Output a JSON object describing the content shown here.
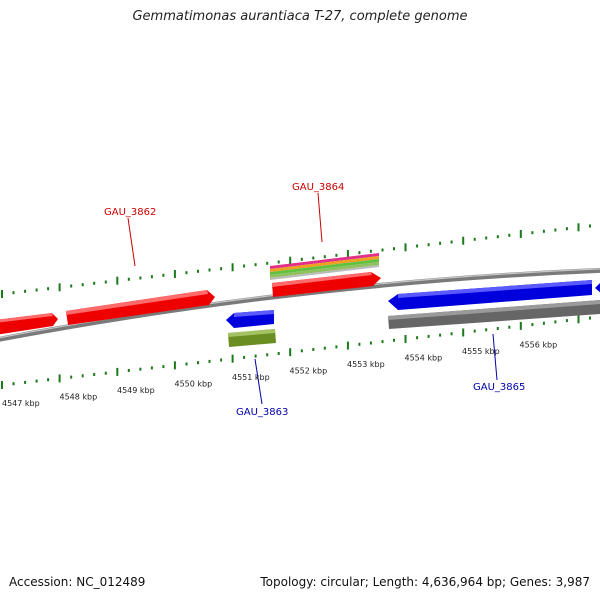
{
  "title": "Gemmatimonas aurantiaca T-27, complete genome",
  "footer": {
    "accession": "Accession: NC_012489",
    "topology": "Topology: circular; Length: 4,636,964 bp; Genes: 3,987"
  },
  "colors": {
    "forward_gene": "#ee0000",
    "reverse_gene": "#0000dd",
    "olive_gene": "#6b8e23",
    "gray_feature": "#666666",
    "tick": "#1a7a1a",
    "backbone": "#888888",
    "label_forward": "#cc0000",
    "label_reverse": "#0000aa"
  },
  "scale": {
    "ticks": [
      {
        "label": "4547 kbp",
        "kbp": 4547
      },
      {
        "label": "4548 kbp",
        "kbp": 4548
      },
      {
        "label": "4549 kbp",
        "kbp": 4549
      },
      {
        "label": "4550 kbp",
        "kbp": 4550
      },
      {
        "label": "4551 kbp",
        "kbp": 4551
      },
      {
        "label": "4552 kbp",
        "kbp": 4552
      },
      {
        "label": "4553 kbp",
        "kbp": 4553
      },
      {
        "label": "4554 kbp",
        "kbp": 4554
      },
      {
        "label": "4555 kbp",
        "kbp": 4555
      },
      {
        "label": "4556 kbp",
        "kbp": 4556
      }
    ]
  },
  "gene_labels": {
    "gau3862": "GAU_3862",
    "gau3864": "GAU_3864",
    "gau3863": "GAU_3863",
    "gau3865": "GAU_3865"
  },
  "features": [
    {
      "id": "fwd-gene-a",
      "strand": "+",
      "type": "gene",
      "color": "red",
      "start_kbp": 4546.5,
      "end_kbp": 4547.5
    },
    {
      "id": "fwd-gene-3862",
      "strand": "+",
      "type": "gene",
      "color": "red",
      "start_kbp": 4547.6,
      "end_kbp": 4550.1
    },
    {
      "id": "fwd-gene-3864",
      "strand": "+",
      "type": "gene",
      "color": "red",
      "start_kbp": 4551.8,
      "end_kbp": 4553.6
    },
    {
      "id": "rev-gene-3863",
      "strand": "-",
      "type": "gene",
      "color": "blue",
      "start_kbp": 4550.3,
      "end_kbp": 4551.1
    },
    {
      "id": "rev-gene-3865",
      "strand": "-",
      "type": "gene",
      "color": "blue",
      "start_kbp": 4553.9,
      "end_kbp": 4557.0
    }
  ]
}
